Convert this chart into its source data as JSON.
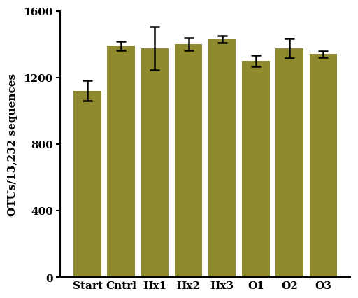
{
  "categories": [
    "Start",
    "Cntrl",
    "Hx1",
    "Hx2",
    "Hx3",
    "O1",
    "O2",
    "O3"
  ],
  "values": [
    1120,
    1390,
    1375,
    1400,
    1430,
    1300,
    1375,
    1340
  ],
  "errors": [
    60,
    28,
    130,
    38,
    22,
    32,
    60,
    18
  ],
  "bar_color": "#8f8a2e",
  "bar_edge_color": "none",
  "error_color": "black",
  "ylabel": "OTUs/13,232 sequences",
  "ylim": [
    0,
    1600
  ],
  "yticks": [
    0,
    400,
    800,
    1200,
    1600
  ],
  "background_color": "white",
  "bar_width": 0.82
}
